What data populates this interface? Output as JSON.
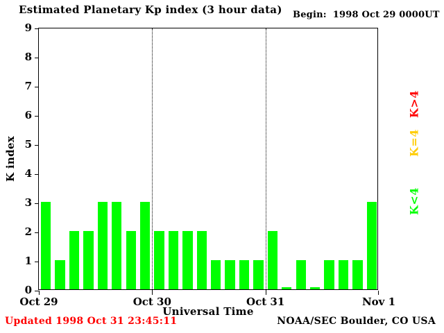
{
  "title": "Estimated Planetary Kp index (3 hour data)",
  "begin_label": "Begin:",
  "begin_value": "1998 Oct 29 0000UT",
  "footer": {
    "updated": "Updated 1998 Oct 31 23:45:11",
    "updated_color": "#ff0000",
    "credit": "NOAA/SEC Boulder, CO USA"
  },
  "legend": [
    {
      "label": "K>4",
      "color": "#ff0000"
    },
    {
      "label": "K=4",
      "color": "#ffcc00"
    },
    {
      "label": "K<4",
      "color": "#00ff00"
    }
  ],
  "chart_data": {
    "type": "bar",
    "title": "Estimated Planetary Kp index (3 hour data)",
    "xlabel": "Universal Time",
    "ylabel": "K index",
    "ylim": [
      0,
      9
    ],
    "yticks": [
      0,
      1,
      2,
      3,
      4,
      5,
      6,
      7,
      8,
      9
    ],
    "x_tick_labels": [
      "Oct 29",
      "Oct 30",
      "Oct 31",
      "Nov 1"
    ],
    "hours_per_bar": 3,
    "bar_color": "#00ff00",
    "gridlines": "dotted vertical at day boundaries",
    "categories": [
      "Oct 29 00-03",
      "Oct 29 03-06",
      "Oct 29 06-09",
      "Oct 29 09-12",
      "Oct 29 12-15",
      "Oct 29 15-18",
      "Oct 29 18-21",
      "Oct 29 21-24",
      "Oct 30 00-03",
      "Oct 30 03-06",
      "Oct 30 06-09",
      "Oct 30 09-12",
      "Oct 30 12-15",
      "Oct 30 15-18",
      "Oct 30 18-21",
      "Oct 30 21-24",
      "Oct 31 00-03",
      "Oct 31 03-06",
      "Oct 31 06-09",
      "Oct 31 09-12",
      "Oct 31 12-15",
      "Oct 31 15-18",
      "Oct 31 18-21",
      "Oct 31 21-24"
    ],
    "values": [
      3,
      1,
      2,
      2,
      3,
      3,
      2,
      3,
      2,
      2,
      2,
      2,
      1,
      1,
      1,
      1,
      2,
      0,
      1,
      0,
      1,
      1,
      1,
      3
    ]
  }
}
